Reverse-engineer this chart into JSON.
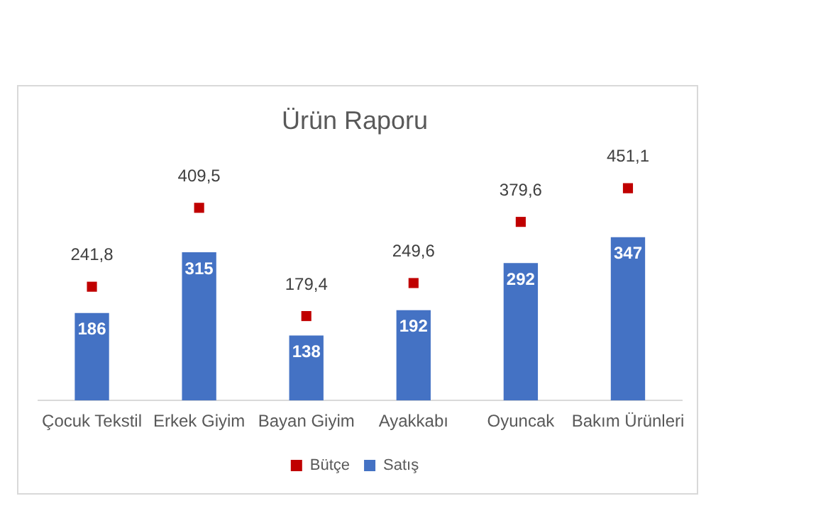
{
  "chart_data": {
    "type": "bar",
    "title": "Ürün Raporu",
    "categories": [
      "Çocuk Tekstil",
      "Erkek Giyim",
      "Bayan Giyim",
      "Ayakkabı",
      "Oyuncak",
      "Bakım Ürünleri"
    ],
    "series": [
      {
        "name": "Satış",
        "color": "#4472c4",
        "values": [
          186,
          315,
          138,
          192,
          292,
          347
        ],
        "value_labels": [
          "186",
          "315",
          "138",
          "192",
          "292",
          "347"
        ]
      },
      {
        "name": "Bütçe",
        "type": "scatter",
        "color": "#c00000",
        "values": [
          241.8,
          409.5,
          179.4,
          249.6,
          379.6,
          451.1
        ],
        "value_labels": [
          "241,8",
          "409,5",
          "179,4",
          "249,6",
          "379,6",
          "451,1"
        ]
      }
    ],
    "legend": "bottom",
    "grid": false
  }
}
